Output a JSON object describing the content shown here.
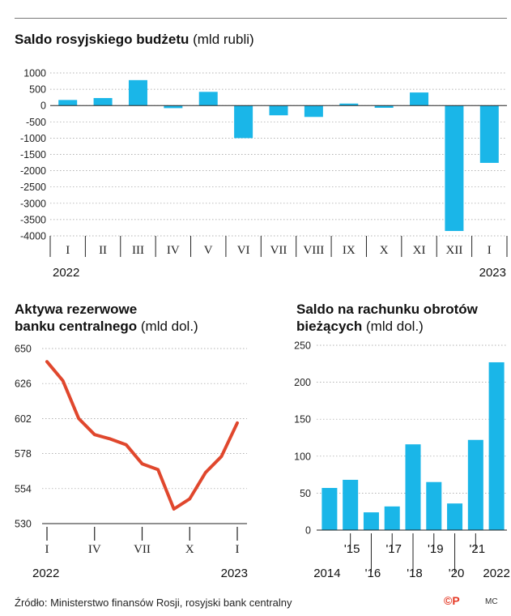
{
  "charts": [
    {
      "id": "budget",
      "title": "Saldo rosyjskiego budżetu",
      "unit": "(mld rubli)",
      "chart_data": {
        "type": "bar",
        "categories": [
          "I",
          "II",
          "III",
          "IV",
          "V",
          "VI",
          "VII",
          "VIII",
          "IX",
          "X",
          "XI",
          "XII",
          "I"
        ],
        "values": [
          170,
          230,
          780,
          -80,
          420,
          -1000,
          -300,
          -350,
          60,
          -70,
          400,
          -3850,
          -1760
        ],
        "yticks": [
          1000,
          500,
          0,
          -500,
          -1000,
          -1500,
          -2000,
          -2500,
          -3000,
          -3500,
          -4000
        ],
        "ylim": [
          -4000,
          1000
        ],
        "year_start": "2022",
        "year_end": "2023",
        "bar_color": "#1ab6e8"
      }
    },
    {
      "id": "reserves",
      "title_line1": "Aktywa rezerwowe",
      "title_line2": "banku centralnego",
      "unit": "(mld dol.)",
      "chart_data": {
        "type": "line",
        "x_index": [
          0,
          1,
          2,
          3,
          4,
          5,
          6,
          7,
          8,
          9,
          10,
          11,
          12
        ],
        "values": [
          641,
          628,
          602,
          591,
          588,
          584,
          571,
          567,
          540,
          547,
          565,
          576,
          599
        ],
        "yticks": [
          650,
          626,
          602,
          578,
          554,
          530
        ],
        "ylim": [
          530,
          650
        ],
        "xtick_labels": [
          "I",
          "IV",
          "VII",
          "X",
          "I"
        ],
        "xtick_positions": [
          0,
          3,
          6,
          9,
          12
        ],
        "year_start": "2022",
        "year_end": "2023",
        "line_color": "#e0472d"
      }
    },
    {
      "id": "current_account",
      "title_line1": "Saldo na rachunku obrotów",
      "title_line2": "bieżących",
      "unit": "(mld dol.)",
      "chart_data": {
        "type": "bar",
        "categories": [
          "2014",
          "2015",
          "2016",
          "2017",
          "2018",
          "2019",
          "2020",
          "2021",
          "2022"
        ],
        "category_labels": [
          "2014",
          "'15",
          "'16",
          "'17",
          "'18",
          "'19",
          "'20",
          "'21",
          "2022"
        ],
        "values": [
          57,
          68,
          24,
          32,
          116,
          65,
          36,
          122,
          227
        ],
        "yticks": [
          250,
          200,
          150,
          100,
          50,
          0
        ],
        "ylim": [
          0,
          250
        ],
        "bar_color": "#1ab6e8"
      }
    }
  ],
  "footer": {
    "source": "Źródło: Ministerstwo finansów Rosji, rosyjski bank centralny",
    "logo": "©P",
    "credit": "MC"
  }
}
